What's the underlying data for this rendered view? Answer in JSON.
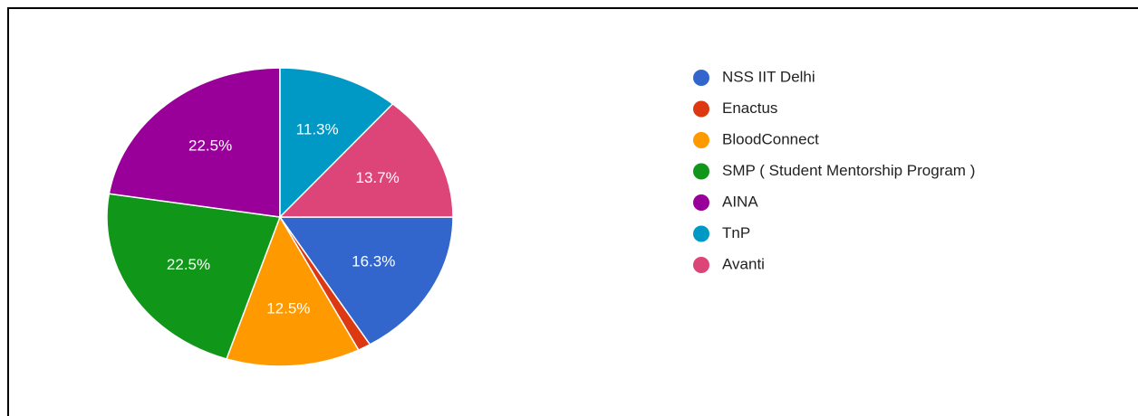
{
  "chart_data": {
    "type": "pie",
    "categories": [
      "NSS IIT Delhi",
      "Enactus",
      "BloodConnect",
      "SMP ( Student Mentorship Program )",
      "AINA",
      "TnP",
      "Avanti"
    ],
    "values": [
      16.3,
      1.2,
      12.5,
      22.5,
      22.5,
      11.3,
      13.7
    ],
    "value_labels": [
      "16.3%",
      null,
      "12.5%",
      "22.5%",
      "22.5%",
      "11.3%",
      "13.7%"
    ],
    "colors": [
      "#3366cc",
      "#dc3912",
      "#ff9900",
      "#109618",
      "#990099",
      "#0099c6",
      "#dd4477"
    ],
    "legend": "right"
  }
}
